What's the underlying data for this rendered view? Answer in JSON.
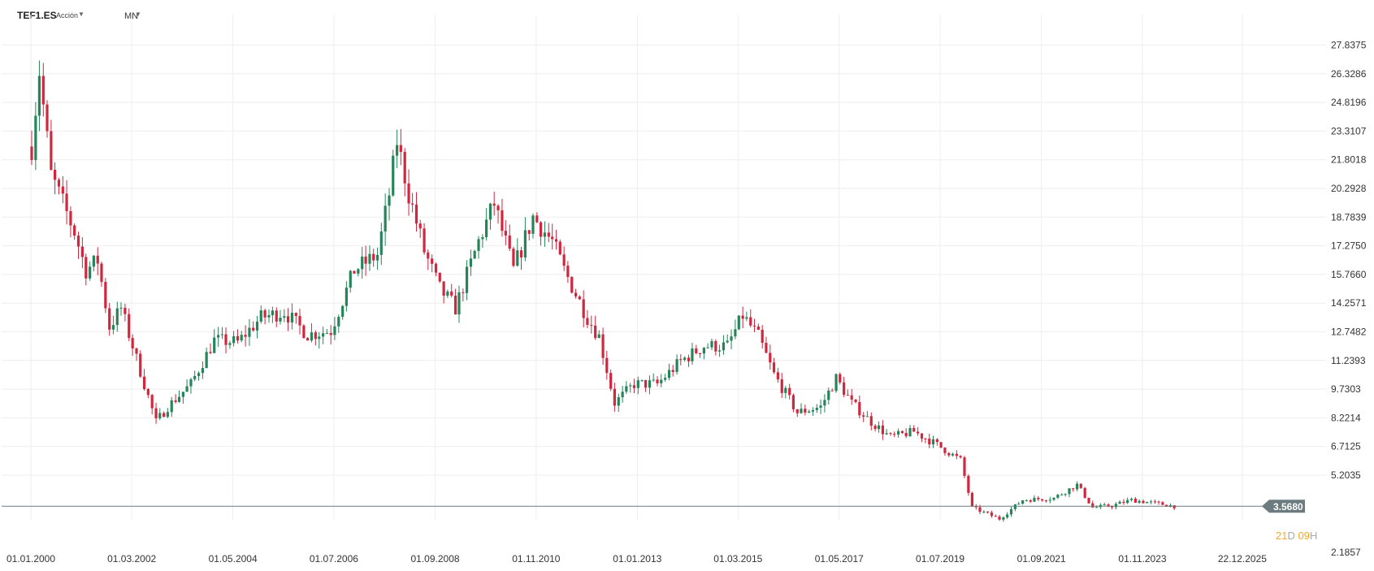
{
  "header": {
    "symbol": "TEF1.ES",
    "instrument_type": "Acción",
    "timeframe": "MN"
  },
  "countdown": {
    "days": "21",
    "days_unit": "D",
    "hours": "09",
    "hours_unit": "H"
  },
  "colors": {
    "up": "#26845a",
    "down": "#d0263e",
    "grid": "#eeeeee",
    "price_line": "#6b7b7f",
    "price_label_bg": "#6b7b7f"
  },
  "chart_data": {
    "type": "candlestick",
    "y_ticks": [
      "27.8375",
      "26.3286",
      "24.8196",
      "23.3107",
      "21.8018",
      "20.2928",
      "18.7839",
      "17.2750",
      "15.7660",
      "14.2571",
      "12.7482",
      "11.2393",
      "9.7303",
      "8.2214",
      "6.7125",
      "5.2035",
      "2.1857"
    ],
    "x_ticks": [
      "01.01.2000",
      "01.03.2002",
      "01.05.2004",
      "01.07.2006",
      "01.09.2008",
      "01.11.2010",
      "01.01.2013",
      "01.03.2015",
      "01.05.2017",
      "01.07.2019",
      "01.09.2021",
      "01.11.2023",
      "22.12.2025"
    ],
    "x_tick_dates": [
      "2000-01-01",
      "2002-03-01",
      "2004-05-01",
      "2006-07-01",
      "2008-09-01",
      "2010-11-01",
      "2013-01-01",
      "2015-03-01",
      "2017-05-01",
      "2019-07-01",
      "2021-09-01",
      "2023-11-01",
      "2025-12-22"
    ],
    "ylim": [
      2.1857,
      27.8375
    ],
    "current_price": "3.5680",
    "anchors": [
      [
        "2000-01-01",
        22.5
      ],
      [
        "2000-03-01",
        26.5
      ],
      [
        "2000-06-01",
        21.0
      ],
      [
        "2000-09-01",
        19.5
      ],
      [
        "2000-12-01",
        18.0
      ],
      [
        "2001-03-01",
        16.0
      ],
      [
        "2001-06-01",
        16.5
      ],
      [
        "2001-09-01",
        13.0
      ],
      [
        "2001-12-01",
        14.0
      ],
      [
        "2002-03-01",
        12.0
      ],
      [
        "2002-06-01",
        10.0
      ],
      [
        "2002-09-01",
        8.0
      ],
      [
        "2002-12-01",
        8.8
      ],
      [
        "2003-06-01",
        10.0
      ],
      [
        "2003-12-01",
        12.3
      ],
      [
        "2004-06-01",
        12.2
      ],
      [
        "2004-12-01",
        13.5
      ],
      [
        "2005-06-01",
        13.8
      ],
      [
        "2005-12-01",
        12.6
      ],
      [
        "2006-06-01",
        12.8
      ],
      [
        "2006-12-01",
        16.0
      ],
      [
        "2007-06-01",
        16.8
      ],
      [
        "2007-09-01",
        20.0
      ],
      [
        "2007-11-01",
        22.8
      ],
      [
        "2008-02-01",
        20.0
      ],
      [
        "2008-06-01",
        17.0
      ],
      [
        "2008-10-01",
        15.0
      ],
      [
        "2009-02-01",
        14.0
      ],
      [
        "2009-08-01",
        17.5
      ],
      [
        "2009-12-01",
        19.5
      ],
      [
        "2010-05-01",
        16.0
      ],
      [
        "2010-10-01",
        18.8
      ],
      [
        "2011-03-01",
        17.5
      ],
      [
        "2011-06-01",
        16.0
      ],
      [
        "2011-12-01",
        13.5
      ],
      [
        "2012-03-01",
        12.5
      ],
      [
        "2012-07-01",
        9.0
      ],
      [
        "2012-12-01",
        10.0
      ],
      [
        "2013-06-01",
        10.0
      ],
      [
        "2013-12-01",
        11.2
      ],
      [
        "2014-06-01",
        12.0
      ],
      [
        "2014-12-01",
        12.0
      ],
      [
        "2015-04-01",
        13.6
      ],
      [
        "2015-08-01",
        12.5
      ],
      [
        "2015-12-01",
        10.5
      ],
      [
        "2016-06-01",
        8.5
      ],
      [
        "2016-12-01",
        8.8
      ],
      [
        "2017-04-01",
        10.3
      ],
      [
        "2017-08-01",
        9.0
      ],
      [
        "2018-01-01",
        8.0
      ],
      [
        "2018-06-01",
        7.2
      ],
      [
        "2018-12-01",
        7.5
      ],
      [
        "2019-06-01",
        6.8
      ],
      [
        "2019-12-01",
        6.0
      ],
      [
        "2020-03-01",
        3.5
      ],
      [
        "2020-10-01",
        2.9
      ],
      [
        "2021-04-01",
        3.9
      ],
      [
        "2021-12-01",
        4.0
      ],
      [
        "2022-06-01",
        4.7
      ],
      [
        "2022-10-01",
        3.5
      ],
      [
        "2023-03-01",
        3.6
      ],
      [
        "2023-08-01",
        3.9
      ],
      [
        "2024-03-01",
        3.7
      ],
      [
        "2024-07-01",
        3.57
      ]
    ]
  }
}
